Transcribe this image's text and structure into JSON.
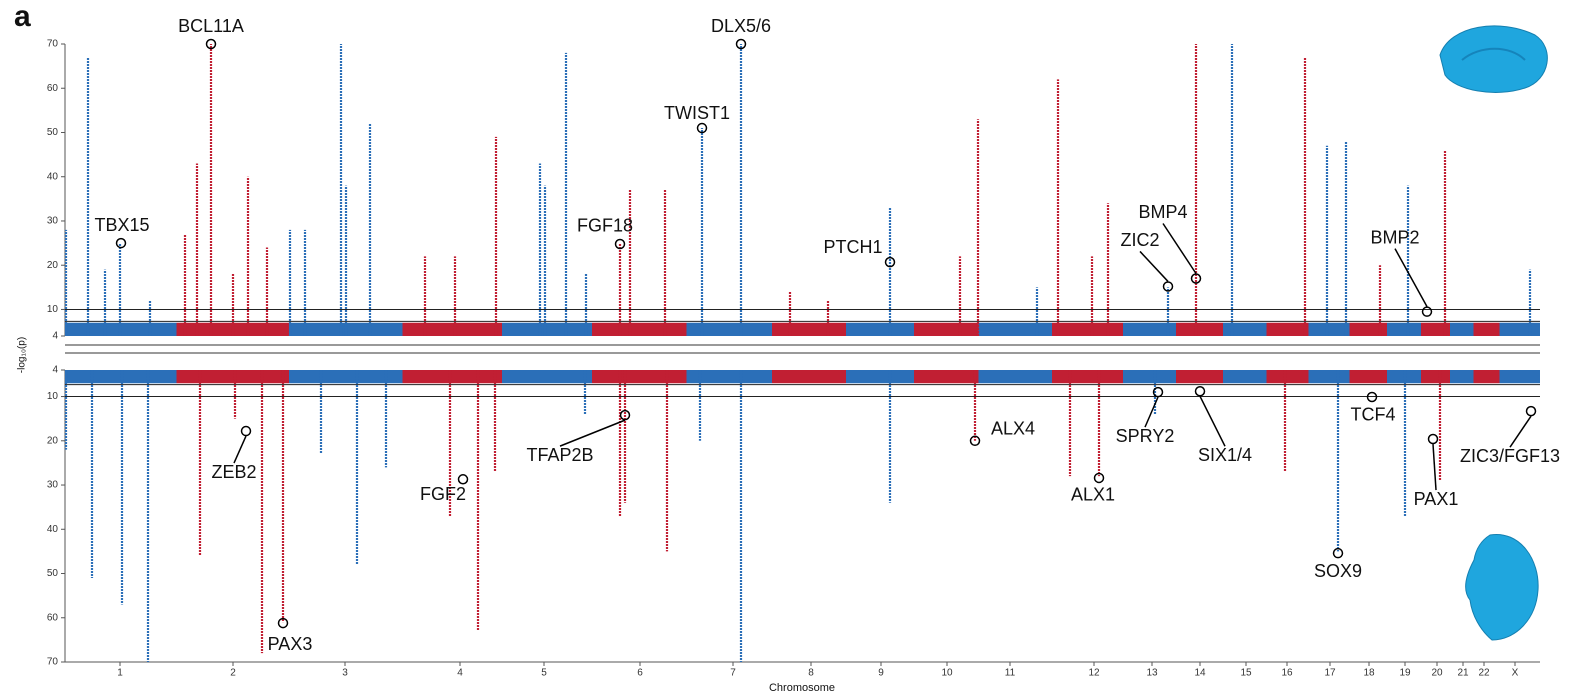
{
  "panel_label": "a",
  "chart_data": {
    "type": "miami",
    "x_label": "Chromosome",
    "y_label": "-log₁₀(p)",
    "xlim": [
      0,
      2950
    ],
    "xticks": [
      {
        "value": 110,
        "label": "1"
      },
      {
        "value": 336,
        "label": "2"
      },
      {
        "value": 560,
        "label": "3"
      },
      {
        "value": 790,
        "label": "4"
      },
      {
        "value": 958,
        "label": "5"
      },
      {
        "value": 1150,
        "label": "6"
      },
      {
        "value": 1336,
        "label": "7"
      },
      {
        "value": 1492,
        "label": "8"
      },
      {
        "value": 1632,
        "label": "9"
      },
      {
        "value": 1764,
        "label": "10"
      },
      {
        "value": 1890,
        "label": "11"
      },
      {
        "value": 2058,
        "label": "12"
      },
      {
        "value": 2174,
        "label": "13"
      },
      {
        "value": 2270,
        "label": "14"
      },
      {
        "value": 2362,
        "label": "15"
      },
      {
        "value": 2444,
        "label": "16"
      },
      {
        "value": 2530,
        "label": "17"
      },
      {
        "value": 2608,
        "label": "18"
      },
      {
        "value": 2680,
        "label": "19"
      },
      {
        "value": 2744,
        "label": "20"
      },
      {
        "value": 2796,
        "label": "21"
      },
      {
        "value": 2838,
        "label": "22"
      },
      {
        "value": 2900,
        "label": "X"
      }
    ],
    "ylim": [
      4,
      70
    ],
    "yticks": [
      4,
      10,
      20,
      30,
      40,
      50,
      60,
      70
    ],
    "y2lim": [
      4,
      70
    ],
    "y2ticks": [
      4,
      10,
      20,
      30,
      40,
      50,
      60,
      70
    ],
    "colors": [
      "#2b6fb8",
      "#c11f33"
    ],
    "series": [
      {
        "panel": "top",
        "x": [
          2,
          46,
          80,
          110,
          170,
          240,
          264,
          292,
          336,
          366,
          404,
          450,
          480,
          552,
          562,
          610,
          720,
          780,
          862,
          950,
          960,
          1002,
          1042,
          1110,
          1130,
          1200,
          1274,
          1352,
          1450,
          1526,
          1650,
          1790,
          1826,
          1944,
          1986,
          2054,
          2086,
          2206,
          2262,
          2334,
          2480,
          2524,
          2562,
          2630,
          2686,
          2760,
          2930
        ],
        "values": [
          28,
          67,
          19,
          25,
          12,
          27,
          43,
          70,
          18,
          40,
          24,
          28,
          28,
          70,
          38,
          52,
          22,
          22,
          49,
          43,
          38,
          68,
          18,
          25,
          37,
          37,
          51,
          70,
          14,
          12,
          33,
          22,
          53,
          15,
          62,
          22,
          34,
          15,
          70,
          70,
          67,
          47,
          48,
          20,
          38,
          46,
          19
        ]
      },
      {
        "panel": "bottom",
        "x": [
          2,
          54,
          114,
          166,
          270,
          340,
          394,
          436,
          512,
          584,
          642,
          770,
          826,
          860,
          1040,
          1110,
          1120,
          1204,
          1270,
          1352,
          1650,
          1820,
          2010,
          2068,
          2180,
          2440,
          2546,
          2680,
          2750
        ],
        "values": [
          22,
          51,
          57,
          70,
          46,
          15,
          68,
          61,
          23,
          48,
          26,
          37,
          63,
          27,
          14,
          37,
          34,
          45,
          20,
          70,
          34,
          20,
          28,
          28,
          14,
          27,
          45,
          37,
          29
        ]
      }
    ],
    "annotations": [
      {
        "text": "TBX15",
        "panel": "top",
        "x": 112,
        "value": 25
      },
      {
        "text": "BCL11A",
        "panel": "top",
        "x": 292,
        "value": 70
      },
      {
        "text": "FGF18",
        "panel": "top",
        "x": 1110,
        "value": 24.8
      },
      {
        "text": "TWIST1",
        "panel": "top",
        "x": 1274,
        "value": 51
      },
      {
        "text": "DLX5/6",
        "panel": "top",
        "x": 1352,
        "value": 70
      },
      {
        "text": "PTCH1",
        "panel": "top",
        "x": 1650,
        "value": 20.7
      },
      {
        "text": "ZIC2",
        "panel": "top",
        "x": 2206,
        "value": 15.2
      },
      {
        "text": "BMP4",
        "panel": "top",
        "x": 2262,
        "value": 17
      },
      {
        "text": "BMP2",
        "panel": "top",
        "x": 2724,
        "value": 9.5
      },
      {
        "text": "ZEB2",
        "panel": "bottom",
        "x": 362,
        "value": 17.8
      },
      {
        "text": "PAX3",
        "panel": "bottom",
        "x": 436,
        "value": 61.2
      },
      {
        "text": "FGF2",
        "panel": "bottom",
        "x": 796,
        "value": 28.7
      },
      {
        "text": "TFAP2B",
        "panel": "bottom",
        "x": 1120,
        "value": 14.2
      },
      {
        "text": "ALX4",
        "panel": "bottom",
        "x": 1820,
        "value": 20
      },
      {
        "text": "ALX1",
        "panel": "bottom",
        "x": 2068,
        "value": 28.4
      },
      {
        "text": "SPRY2",
        "panel": "bottom",
        "x": 2186,
        "value": 9
      },
      {
        "text": "SIX1/4",
        "panel": "bottom",
        "x": 2270,
        "value": 8.8
      },
      {
        "text": "TCF4",
        "panel": "bottom",
        "x": 2614,
        "value": 10.1
      },
      {
        "text": "PAX1",
        "panel": "bottom",
        "x": 2736,
        "value": 19.6
      },
      {
        "text": "ZIC3/FGF13",
        "panel": "bottom",
        "x": 2932,
        "value": 13.3
      },
      {
        "text": "SOX9",
        "panel": "bottom",
        "x": 2546,
        "value": 45.4
      }
    ]
  }
}
